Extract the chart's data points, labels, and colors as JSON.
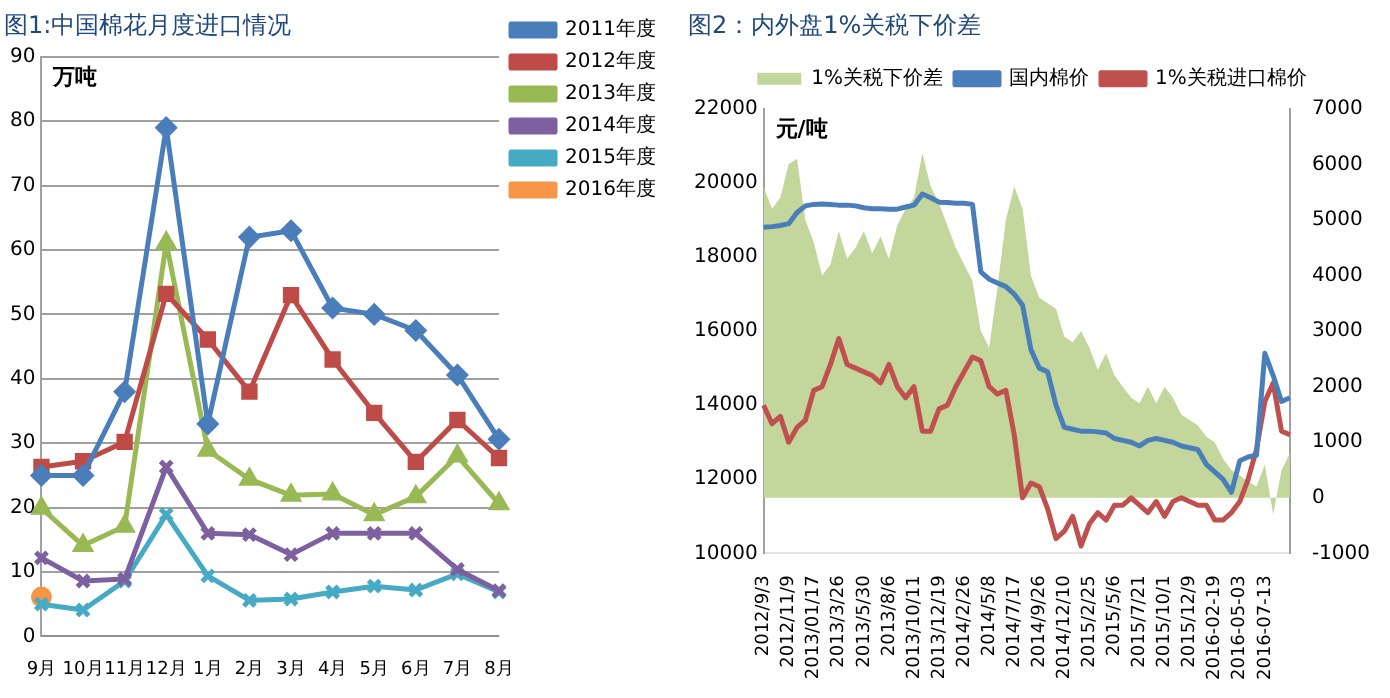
{
  "chart_data": [
    {
      "type": "line",
      "title": "图1:中国棉花月度进口情况",
      "ylabel": "万吨",
      "categories": [
        "9月",
        "10月",
        "11月",
        "12月",
        "1月",
        "2月",
        "3月",
        "4月",
        "5月",
        "6月",
        "7月",
        "8月"
      ],
      "ylim": [
        0,
        90
      ],
      "yticks": [
        0,
        10,
        20,
        30,
        40,
        50,
        60,
        70,
        80,
        90
      ],
      "grid": "y",
      "legend": "top right",
      "series": [
        {
          "name": "2011年度",
          "color": "#4a7ebb",
          "marker": "diamond",
          "values": [
            25,
            25,
            38,
            79,
            33,
            62,
            63,
            51,
            50,
            47.5,
            40.6,
            30.6
          ]
        },
        {
          "name": "2012年度",
          "color": "#be4b48",
          "marker": "square",
          "values": [
            26.3,
            27.2,
            30.2,
            53.2,
            46.1,
            38,
            53,
            43,
            34.7,
            27.1,
            33.6,
            27.7
          ]
        },
        {
          "name": "2013年度",
          "color": "#98b954",
          "marker": "triangle",
          "values": [
            19.9,
            14.1,
            17.1,
            61.1,
            28.9,
            24.4,
            21.9,
            22.1,
            18.9,
            21.7,
            28,
            20.6
          ]
        },
        {
          "name": "2014年度",
          "color": "#7d60a0",
          "marker": "cross",
          "values": [
            12.2,
            8.6,
            8.9,
            26.3,
            16,
            15.8,
            12.7,
            16,
            16,
            16,
            10.4,
            7.1
          ]
        },
        {
          "name": "2015年度",
          "color": "#46aac5",
          "marker": "cross",
          "values": [
            5,
            4.1,
            8.6,
            18.9,
            9.4,
            5.6,
            5.8,
            6.9,
            7.8,
            7.2,
            9.7,
            6.9
          ]
        },
        {
          "name": "2016年度",
          "color": "#f79646",
          "marker": "circle",
          "values": [
            6.1,
            null,
            null,
            null,
            null,
            null,
            null,
            null,
            null,
            null,
            null,
            null
          ]
        }
      ]
    },
    {
      "type": "line",
      "title": "图2：内外盘1%关税下价差",
      "ylabel": "元/吨",
      "legend": "top",
      "ylim": [
        10000,
        22000
      ],
      "yticks": [
        10000,
        12000,
        14000,
        16000,
        18000,
        20000,
        22000
      ],
      "y2lim": [
        -1000,
        7000
      ],
      "y2ticks": [
        -1000,
        0,
        1000,
        2000,
        3000,
        4000,
        5000,
        6000,
        7000
      ],
      "categories": [
        "2012/9/3",
        null,
        null,
        "2012/11/9",
        null,
        null,
        "2013/01/17",
        null,
        null,
        "2013/3/26",
        null,
        null,
        "2013/5/30",
        null,
        null,
        "2013/8/6",
        null,
        null,
        "2013/10/11",
        null,
        null,
        "2013/12/19",
        null,
        null,
        "2014/2/26",
        null,
        null,
        "2014/5/8",
        null,
        null,
        "2014/7/17",
        null,
        null,
        "2014/9/26",
        null,
        null,
        "2014/12/10",
        null,
        null,
        "2015/2/25",
        null,
        null,
        "2015/5/6",
        null,
        null,
        "2015/7/21",
        null,
        null,
        "2015/10/1",
        null,
        null,
        "2015/12/9",
        null,
        null,
        "2016-02-19",
        null,
        null,
        "2016-05-03",
        null,
        null,
        "2016-07-13",
        null,
        null,
        null
      ],
      "series": [
        {
          "name": "1%关税下价差",
          "type": "area",
          "axis": "y2",
          "color": "#c3d69b",
          "values": [
            5600,
            5200,
            5400,
            6000,
            6100,
            5000,
            4600,
            4000,
            4200,
            4800,
            4300,
            4500,
            4800,
            4400,
            4700,
            4300,
            4900,
            5200,
            5400,
            6200,
            5600,
            5300,
            4900,
            4500,
            4200,
            3900,
            3000,
            2700,
            3800,
            5000,
            5600,
            5200,
            4000,
            3600,
            3500,
            3400,
            2900,
            2800,
            3000,
            2700,
            2300,
            2600,
            2200,
            2000,
            1800,
            1700,
            2000,
            1700,
            2000,
            1800,
            1500,
            1400,
            1300,
            1100,
            1000,
            700,
            500,
            400,
            300,
            200,
            600,
            -300,
            500,
            800
          ]
        },
        {
          "name": "国内棉价",
          "color": "#4a7ebb",
          "values": [
            18800,
            18820,
            18850,
            18900,
            19200,
            19380,
            19420,
            19430,
            19420,
            19400,
            19400,
            19380,
            19330,
            19300,
            19300,
            19290,
            19290,
            19350,
            19400,
            19700,
            19600,
            19480,
            19470,
            19450,
            19450,
            19420,
            17600,
            17400,
            17300,
            17200,
            17000,
            16700,
            15500,
            15000,
            14900,
            14000,
            13400,
            13350,
            13300,
            13300,
            13280,
            13250,
            13100,
            13050,
            13000,
            12900,
            13050,
            13100,
            13050,
            13000,
            12900,
            12850,
            12800,
            12400,
            12200,
            12000,
            11650,
            12500,
            12600,
            12650,
            15400,
            14800,
            14100,
            14200
          ]
        },
        {
          "name": "1%关税进口棉价",
          "color": "#c0504d",
          "values": [
            14000,
            13500,
            13700,
            13000,
            13400,
            13600,
            14400,
            14500,
            15100,
            15800,
            15100,
            15000,
            14900,
            14800,
            14600,
            15100,
            14500,
            14200,
            14500,
            13300,
            13300,
            13900,
            14000,
            14500,
            14900,
            15300,
            15200,
            14500,
            14300,
            14400,
            13200,
            11500,
            11900,
            11800,
            11200,
            10400,
            10600,
            11000,
            10200,
            10800,
            11100,
            10900,
            11300,
            11300,
            11500,
            11300,
            11100,
            11400,
            11000,
            11400,
            11500,
            11400,
            11300,
            11300,
            10900,
            10900,
            11100,
            11400,
            12000,
            12800,
            14100,
            14600,
            13300,
            13200
          ]
        }
      ]
    }
  ]
}
